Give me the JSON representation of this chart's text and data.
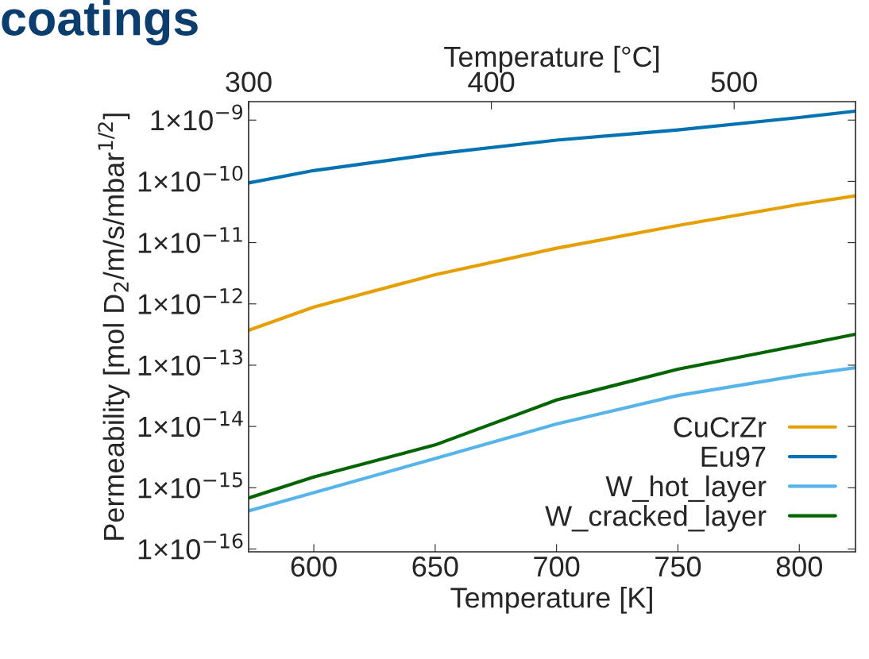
{
  "chart_data": {
    "type": "line",
    "title": "coatings",
    "xlabel": "Temperature [K]",
    "ylabel": "Permeability [mol D$_{2}$/m/s/mbar$^{1/2}$]",
    "x2label": "Temperature [°C]",
    "x": [
      573.15,
      600,
      650,
      700,
      750,
      800,
      823.15
    ],
    "series": [
      {
        "name": "CuCrZr",
        "color": "#e69f00",
        "values": [
          3.7e-13,
          8.9e-13,
          3e-12,
          8.1e-12,
          1.9e-11,
          4.2e-11,
          5.8e-11
        ]
      },
      {
        "name": "Eu97",
        "color": "#0072b2",
        "values": [
          9.4e-11,
          1.5e-10,
          2.8e-10,
          4.7e-10,
          6.9e-10,
          1.1e-09,
          1.4e-09
        ]
      },
      {
        "name": "W_hot_layer",
        "color": "#56b4e9",
        "values": [
          4.2e-16,
          8.3e-16,
          3e-15,
          1.1e-14,
          3.2e-14,
          6.8e-14,
          9.1e-14
        ]
      },
      {
        "name": "W_cracked_layer",
        "color": "#006400",
        "values": [
          6.8e-16,
          1.5e-15,
          5e-15,
          2.7e-14,
          8.6e-14,
          2.1e-13,
          3.2e-13
        ]
      }
    ],
    "log": "y",
    "xlim": [
      573.15,
      823.15
    ],
    "xticks": [
      600,
      650,
      700,
      750,
      800
    ],
    "x2lim": [
      300,
      550
    ],
    "x2ticks": [
      300,
      400,
      500
    ],
    "ylim": [
      9e-17,
      2e-09
    ],
    "yticks": [
      {
        "value": 1e-16,
        "label": "1×10$^{−16}$"
      },
      {
        "value": 1e-15,
        "label": "1×10$^{−15}$"
      },
      {
        "value": 1e-14,
        "label": "1×10$^{−14}$"
      },
      {
        "value": 1e-13,
        "label": "1×10$^{−13}$"
      },
      {
        "value": 1e-12,
        "label": "1×10$^{−12}$"
      },
      {
        "value": 1e-11,
        "label": "1×10$^{−11}$"
      },
      {
        "value": 1e-10,
        "label": "1×10$^{−10}$"
      },
      {
        "value": 1e-09,
        "label": "1×10$^{−9}$"
      }
    ],
    "grid": false,
    "legend": "bottom right",
    "marker": "none",
    "line_style": "solid"
  }
}
